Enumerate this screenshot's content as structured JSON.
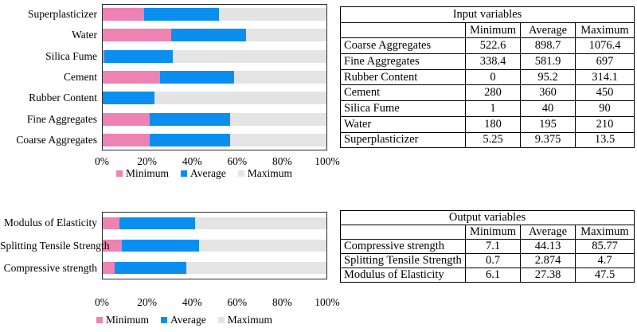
{
  "colors": {
    "minimum": "#EE82B2",
    "average": "#0A8FF0",
    "maximum": "#E4E4E4",
    "text": "#000000",
    "plot_border": "#2B2B2B",
    "table_border": "#000000",
    "background": "#FFFFFF"
  },
  "chart_data": [
    {
      "type": "bar",
      "orientation": "horizontal",
      "stacked_to_100_percent": true,
      "title": "",
      "xlabel": "",
      "ylabel": "",
      "xlim": [
        0,
        100
      ],
      "grid": false,
      "x_ticks": [
        "0%",
        "20%",
        "40%",
        "60%",
        "80%",
        "100%"
      ],
      "legend_position": "bottom",
      "categories": [
        "Superplasticizer",
        "Water",
        "Silica Fume",
        "Cement",
        "Rubber Content",
        "Fine Aggregates",
        "Coarse Aggregates"
      ],
      "series": [
        {
          "name": "Minimum",
          "color_key": "minimum",
          "values": [
            5.25,
            180,
            1,
            280,
            0,
            338.4,
            522.6
          ]
        },
        {
          "name": "Average",
          "color_key": "average",
          "values": [
            9.375,
            195,
            40,
            360,
            95.2,
            581.9,
            898.7
          ]
        },
        {
          "name": "Maximum",
          "color_key": "maximum",
          "values": [
            13.5,
            210,
            90,
            450,
            314.1,
            697,
            1076.4
          ]
        }
      ]
    },
    {
      "type": "bar",
      "orientation": "horizontal",
      "stacked_to_100_percent": true,
      "title": "",
      "xlabel": "",
      "ylabel": "",
      "xlim": [
        0,
        100
      ],
      "grid": false,
      "x_ticks": [
        "0%",
        "20%",
        "40%",
        "60%",
        "80%",
        "100%"
      ],
      "legend_position": "bottom",
      "categories": [
        "Modulus of Elasticity",
        "Splitting Tensile Strength",
        "Compressive strength"
      ],
      "series": [
        {
          "name": "Minimum",
          "color_key": "minimum",
          "values": [
            6.1,
            0.7,
            7.1
          ]
        },
        {
          "name": "Average",
          "color_key": "average",
          "values": [
            27.38,
            2.874,
            44.13
          ]
        },
        {
          "name": "Maximum",
          "color_key": "maximum",
          "values": [
            47.5,
            4.7,
            85.77
          ]
        }
      ]
    }
  ],
  "tables": [
    {
      "title": "Input variables",
      "columns": [
        "",
        "Minimum",
        "Average",
        "Maximum"
      ],
      "rows": [
        {
          "label": "Coarse Aggregates",
          "values": [
            "522.6",
            "898.7",
            "1076.4"
          ]
        },
        {
          "label": "Fine Aggregates",
          "values": [
            "338.4",
            "581.9",
            "697"
          ]
        },
        {
          "label": "Rubber Content",
          "values": [
            "0",
            "95.2",
            "314.1"
          ]
        },
        {
          "label": "Cement",
          "values": [
            "280",
            "360",
            "450"
          ]
        },
        {
          "label": "Silica Fume",
          "values": [
            "1",
            "40",
            "90"
          ]
        },
        {
          "label": "Water",
          "values": [
            "180",
            "195",
            "210"
          ]
        },
        {
          "label": "Superplasticizer",
          "values": [
            "5.25",
            "9.375",
            "13.5"
          ]
        }
      ]
    },
    {
      "title": "Output variables",
      "columns": [
        "",
        "Minimum",
        "Average",
        "Maximum"
      ],
      "rows": [
        {
          "label": "Compressive strength",
          "values": [
            "7.1",
            "44.13",
            "85.77"
          ]
        },
        {
          "label": "Splitting Tensile Strength",
          "values": [
            "0.7",
            "2.874",
            "4.7"
          ]
        },
        {
          "label": "Modulus of Elasticity",
          "values": [
            "6.1",
            "27.38",
            "47.5"
          ]
        }
      ]
    }
  ]
}
